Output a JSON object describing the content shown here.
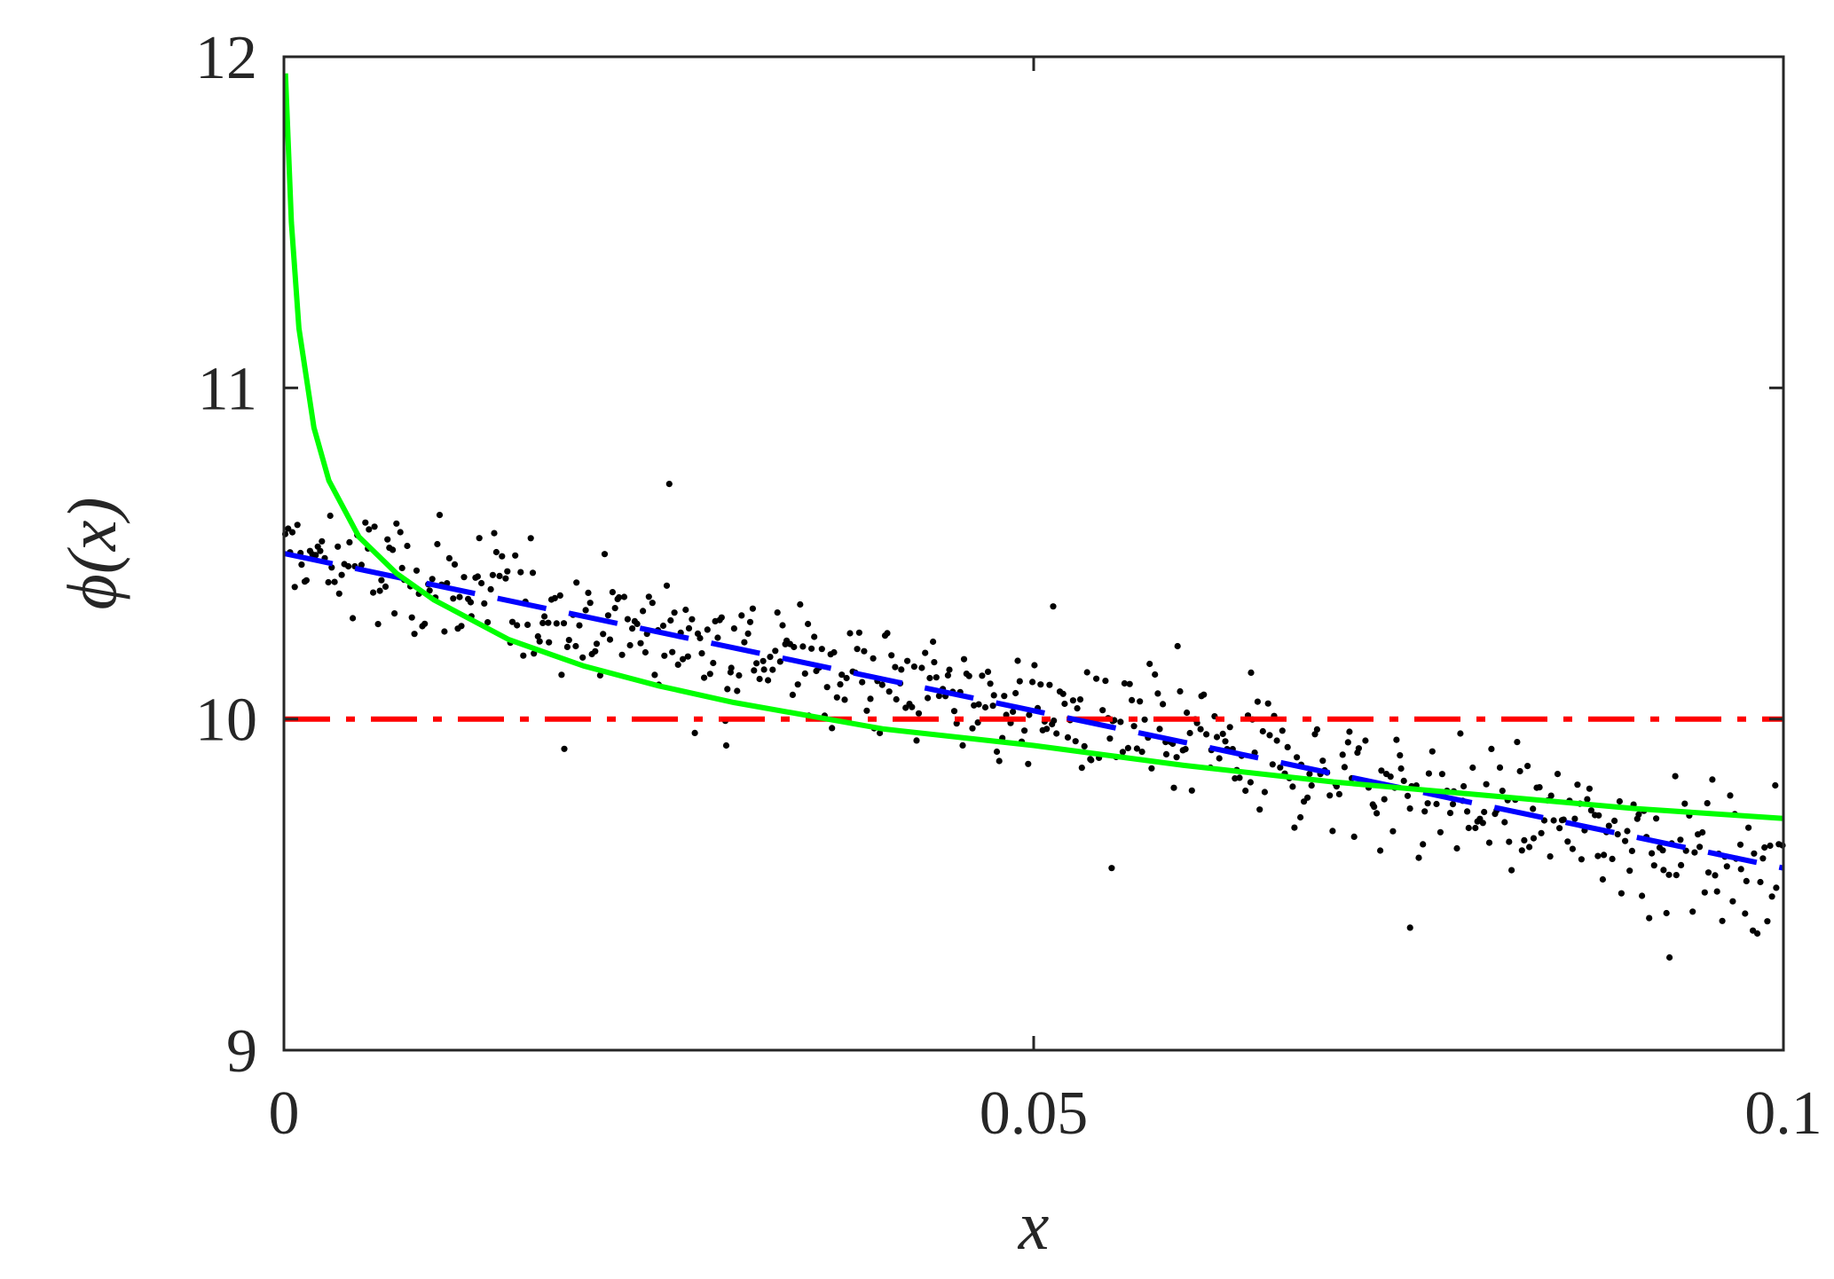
{
  "chart_data": {
    "type": "scatter",
    "title": "",
    "xlabel": "x",
    "ylabel": "ϕ(x)",
    "xlim": [
      0,
      0.1
    ],
    "ylim": [
      9,
      12
    ],
    "x_ticks": [
      0,
      0.05,
      0.1
    ],
    "x_tick_labels": [
      "0",
      "0.05",
      "0.1"
    ],
    "y_ticks": [
      9,
      10,
      11,
      12
    ],
    "y_tick_labels": [
      "9",
      "10",
      "11",
      "12"
    ],
    "grid": false,
    "box": true,
    "lines": [
      {
        "style": "dash-dot",
        "color": "#ff0000",
        "kind": "constant",
        "value": 10.0
      },
      {
        "style": "dashed",
        "color": "#0000ff",
        "kind": "linear",
        "x": [
          0,
          0.1
        ],
        "y": [
          10.5,
          9.55
        ]
      },
      {
        "style": "solid",
        "color": "#00ff00",
        "kind": "curve",
        "x": [
          0.0001,
          0.0005,
          0.001,
          0.002,
          0.003,
          0.005,
          0.0075,
          0.01,
          0.015,
          0.02,
          0.025,
          0.03,
          0.04,
          0.05,
          0.06,
          0.07,
          0.08,
          0.09,
          0.1
        ],
        "y": [
          11.95,
          11.5,
          11.18,
          10.88,
          10.72,
          10.55,
          10.44,
          10.36,
          10.24,
          10.16,
          10.1,
          10.05,
          9.97,
          9.92,
          9.86,
          9.81,
          9.77,
          9.73,
          9.7
        ]
      }
    ],
    "scatter": {
      "color": "#000000",
      "count": 600,
      "trend_start": 10.5,
      "trend_end": 9.55,
      "spread": 0.13,
      "outliers": [
        [
          0.0257,
          10.71
        ],
        [
          0.0187,
          9.91
        ],
        [
          0.0295,
          9.92
        ],
        [
          0.0751,
          9.37
        ],
        [
          0.0924,
          9.28
        ],
        [
          0.0513,
          10.34
        ],
        [
          0.0552,
          9.55
        ],
        [
          0.0645,
          10.14
        ],
        [
          0.0596,
          10.22
        ]
      ]
    }
  }
}
